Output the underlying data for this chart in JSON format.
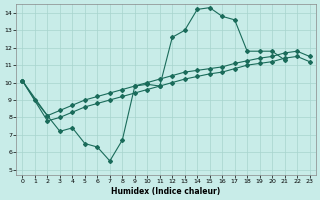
{
  "bg_color": "#c8ece8",
  "grid_color": "#a8d4ce",
  "line_color": "#1a6b5a",
  "xlabel": "Humidex (Indice chaleur)",
  "xlim": [
    -0.5,
    23.5
  ],
  "ylim": [
    4.7,
    14.5
  ],
  "yticks": [
    5,
    6,
    7,
    8,
    9,
    10,
    11,
    12,
    13,
    14
  ],
  "xticks": [
    0,
    1,
    2,
    3,
    4,
    5,
    6,
    7,
    8,
    9,
    10,
    11,
    12,
    13,
    14,
    15,
    16,
    17,
    18,
    19,
    20,
    21,
    22,
    23
  ],
  "curve1_x": [
    0,
    1,
    2,
    3,
    4,
    5,
    6,
    7,
    8,
    9,
    10,
    11,
    12,
    13,
    14,
    15,
    16,
    17,
    18,
    19,
    20,
    21
  ],
  "curve1_y": [
    10.1,
    9.0,
    8.1,
    7.2,
    7.4,
    6.5,
    6.3,
    5.5,
    6.7,
    9.8,
    9.9,
    9.8,
    12.6,
    13.0,
    14.2,
    14.3,
    13.8,
    13.6,
    11.8,
    11.8,
    11.8,
    11.3
  ],
  "line_upper_x": [
    0,
    2,
    3,
    4,
    5,
    6,
    7,
    8,
    9,
    10,
    11,
    12,
    13,
    14,
    15,
    16,
    17,
    18,
    19,
    20,
    21,
    22,
    23
  ],
  "line_upper_y": [
    10.1,
    8.1,
    8.4,
    8.7,
    9.0,
    9.2,
    9.4,
    9.6,
    9.8,
    10.0,
    10.2,
    10.4,
    10.6,
    10.7,
    10.8,
    10.9,
    11.1,
    11.25,
    11.4,
    11.5,
    11.7,
    11.8,
    11.5
  ],
  "line_lower_x": [
    0,
    2,
    3,
    4,
    5,
    6,
    7,
    8,
    9,
    10,
    11,
    12,
    13,
    14,
    15,
    16,
    17,
    18,
    19,
    20,
    21,
    22,
    23
  ],
  "line_lower_y": [
    10.1,
    7.8,
    8.0,
    8.3,
    8.6,
    8.8,
    9.0,
    9.2,
    9.4,
    9.6,
    9.8,
    10.0,
    10.2,
    10.35,
    10.5,
    10.6,
    10.8,
    11.0,
    11.1,
    11.2,
    11.4,
    11.5,
    11.2
  ]
}
